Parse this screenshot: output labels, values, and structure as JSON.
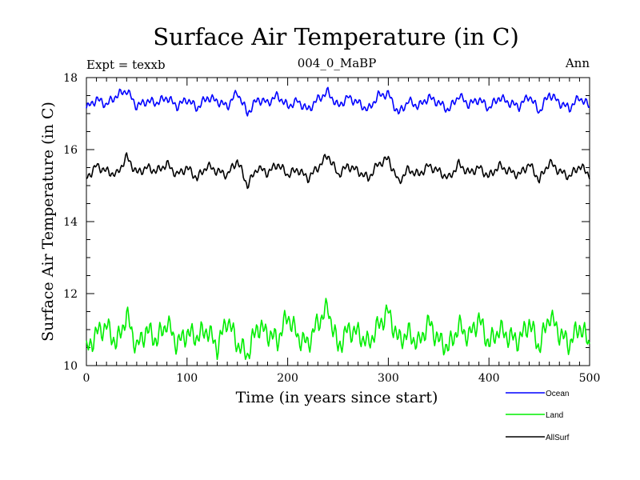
{
  "chart_data": {
    "type": "line",
    "title": "Surface Air Temperature (in C)",
    "subtitle_left": "Expt = texxb",
    "subtitle_center": "004_0_MaBP",
    "subtitle_right": "Ann",
    "xlabel": "Time (in years since start)",
    "ylabel": "Surface Air Temperature (in C)",
    "xlim": [
      0,
      500
    ],
    "ylim": [
      10,
      18
    ],
    "xticks": [
      0,
      100,
      200,
      300,
      400,
      500
    ],
    "yticks": [
      10,
      12,
      14,
      16,
      18
    ],
    "legend_position": "bottom-right-outside",
    "x": [
      0,
      10,
      20,
      30,
      40,
      50,
      60,
      70,
      80,
      90,
      100,
      110,
      120,
      130,
      140,
      150,
      160,
      170,
      180,
      190,
      200,
      210,
      220,
      230,
      240,
      250,
      260,
      270,
      280,
      290,
      300,
      310,
      320,
      330,
      340,
      350,
      360,
      370,
      380,
      390,
      400,
      410,
      420,
      430,
      440,
      450,
      460,
      470,
      480,
      490,
      500
    ],
    "series": [
      {
        "name": "Ocean",
        "color": "#0000ff",
        "values": [
          17.15,
          17.4,
          17.25,
          17.5,
          17.65,
          17.2,
          17.35,
          17.3,
          17.45,
          17.2,
          17.4,
          17.15,
          17.45,
          17.35,
          17.2,
          17.6,
          17.0,
          17.4,
          17.3,
          17.5,
          17.2,
          17.35,
          17.1,
          17.4,
          17.6,
          17.2,
          17.45,
          17.3,
          17.1,
          17.5,
          17.55,
          17.0,
          17.35,
          17.2,
          17.45,
          17.3,
          17.1,
          17.5,
          17.25,
          17.4,
          17.15,
          17.45,
          17.3,
          17.2,
          17.5,
          17.05,
          17.55,
          17.3,
          17.15,
          17.45,
          17.2
        ]
      },
      {
        "name": "Land",
        "color": "#00ee00",
        "values": [
          10.4,
          10.9,
          11.1,
          10.6,
          11.4,
          10.5,
          11.0,
          10.7,
          11.2,
          10.6,
          10.9,
          10.8,
          11.0,
          10.5,
          11.3,
          10.6,
          10.3,
          11.1,
          10.9,
          10.7,
          11.4,
          10.8,
          10.6,
          11.2,
          11.6,
          10.5,
          11.0,
          10.9,
          10.6,
          11.1,
          11.5,
          10.7,
          10.9,
          10.6,
          11.2,
          10.7,
          10.5,
          11.1,
          10.8,
          11.3,
          10.6,
          11.0,
          10.8,
          10.7,
          11.2,
          10.5,
          11.4,
          10.9,
          10.6,
          11.1,
          10.6
        ]
      },
      {
        "name": "AllSurf",
        "color": "#000000",
        "values": [
          15.2,
          15.55,
          15.4,
          15.3,
          15.8,
          15.35,
          15.5,
          15.4,
          15.6,
          15.3,
          15.5,
          15.2,
          15.55,
          15.4,
          15.3,
          15.7,
          15.0,
          15.5,
          15.35,
          15.6,
          15.3,
          15.45,
          15.2,
          15.5,
          15.85,
          15.3,
          15.55,
          15.4,
          15.2,
          15.6,
          15.75,
          15.1,
          15.45,
          15.3,
          15.55,
          15.4,
          15.2,
          15.6,
          15.35,
          15.5,
          15.25,
          15.55,
          15.4,
          15.3,
          15.6,
          15.15,
          15.65,
          15.4,
          15.25,
          15.55,
          15.3
        ]
      }
    ]
  }
}
